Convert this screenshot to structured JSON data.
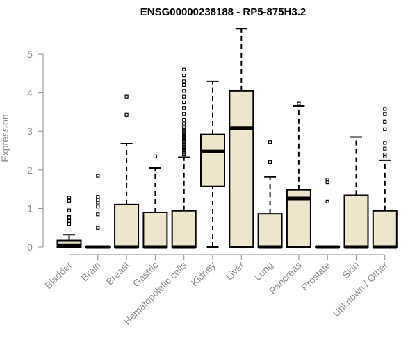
{
  "chart_data": {
    "type": "boxplot",
    "title": "ENSG00000238188 - RP5-875H3.2",
    "xlabel": "",
    "ylabel": "Expression",
    "ylim": [
      0,
      5.8
    ],
    "yticks": [
      0,
      1,
      2,
      3,
      4,
      5
    ],
    "colors": {
      "box_fill": "#ede6cc",
      "stroke": "#000000",
      "axis": "#8c8c8c"
    },
    "categories": [
      "Bladder",
      "Brain",
      "Breast",
      "Gastric",
      "Hematopoietic cells",
      "Kidney",
      "Liver",
      "Lung",
      "Pancreas",
      "Prostate",
      "Skin",
      "Unknown / Other"
    ],
    "boxes": [
      {
        "name": "Bladder",
        "min": 0,
        "q1": 0,
        "median": 0.05,
        "q3": 0.17,
        "max": 0.32,
        "outliers": [
          0.6,
          0.68,
          0.75,
          0.78,
          0.95,
          1.2,
          1.28
        ]
      },
      {
        "name": "Brain",
        "min": 0,
        "q1": 0,
        "median": 0,
        "q3": 0,
        "max": 0,
        "outliers": [
          0.5,
          0.85,
          1.05,
          1.15,
          1.22,
          1.3,
          1.85
        ]
      },
      {
        "name": "Breast",
        "min": 0,
        "q1": 0,
        "median": 0,
        "q3": 1.1,
        "max": 2.68,
        "outliers": [
          3.43,
          3.9
        ]
      },
      {
        "name": "Gastric",
        "min": 0,
        "q1": 0,
        "median": 0,
        "q3": 0.9,
        "max": 2.05,
        "outliers": [
          2.35
        ]
      },
      {
        "name": "Hematopoietic cells",
        "min": 0,
        "q1": 0,
        "median": 0,
        "q3": 0.94,
        "max": 2.33,
        "outliers": [
          2.4,
          2.45,
          2.5,
          2.55,
          2.6,
          2.65,
          2.7,
          2.75,
          2.8,
          2.85,
          2.9,
          2.95,
          3.0,
          3.05,
          3.1,
          3.2,
          3.3,
          3.45,
          3.6,
          3.75,
          3.9,
          4.05,
          4.2,
          4.3,
          4.45,
          4.6
        ]
      },
      {
        "name": "Kidney",
        "min": 0,
        "q1": 1.57,
        "median": 2.48,
        "q3": 2.92,
        "max": 4.3,
        "outliers": []
      },
      {
        "name": "Liver",
        "min": 0,
        "q1": 0,
        "median": 3.08,
        "q3": 4.05,
        "max": 5.66,
        "outliers": []
      },
      {
        "name": "Lung",
        "min": 0,
        "q1": 0,
        "median": 0,
        "q3": 0.86,
        "max": 1.82,
        "outliers": [
          2.2,
          2.72
        ]
      },
      {
        "name": "Pancreas",
        "min": 0,
        "q1": 0,
        "median": 1.26,
        "q3": 1.48,
        "max": 3.65,
        "outliers": [
          3.72
        ]
      },
      {
        "name": "Prostate",
        "min": 0,
        "q1": 0,
        "median": 0,
        "q3": 0,
        "max": 0,
        "outliers": [
          1.18,
          1.68,
          1.75
        ]
      },
      {
        "name": "Skin",
        "min": 0,
        "q1": 0,
        "median": 0,
        "q3": 1.34,
        "max": 2.85,
        "outliers": []
      },
      {
        "name": "Unknown / Other",
        "min": 0,
        "q1": 0,
        "median": 0,
        "q3": 0.94,
        "max": 2.25,
        "outliers": [
          2.35,
          2.4,
          2.55,
          2.7,
          3.05,
          3.25,
          3.45,
          3.58
        ]
      }
    ]
  }
}
